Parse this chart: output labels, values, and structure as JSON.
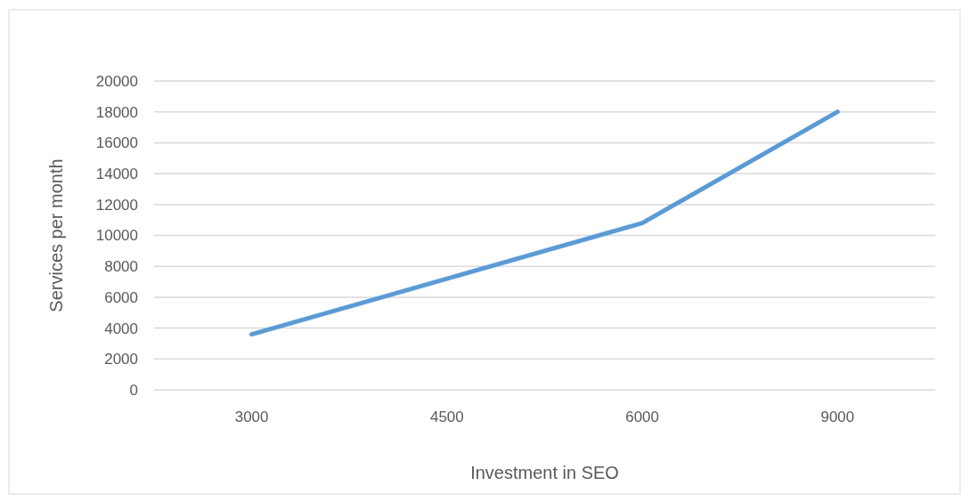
{
  "chart_data": {
    "type": "line",
    "xlabel": "Investment in SEO",
    "ylabel": "Services per month",
    "categories": [
      "3000",
      "4500",
      "6000",
      "9000"
    ],
    "series": [
      {
        "color": "#5b9bd5",
        "values": [
          3600,
          7200,
          10800,
          18000
        ]
      }
    ],
    "ylim": [
      0,
      20000
    ],
    "yticks": [
      0,
      2000,
      4000,
      6000,
      8000,
      10000,
      12000,
      14000,
      16000,
      18000,
      20000
    ],
    "grid": "y",
    "marker": "none",
    "line_style": "solid"
  }
}
